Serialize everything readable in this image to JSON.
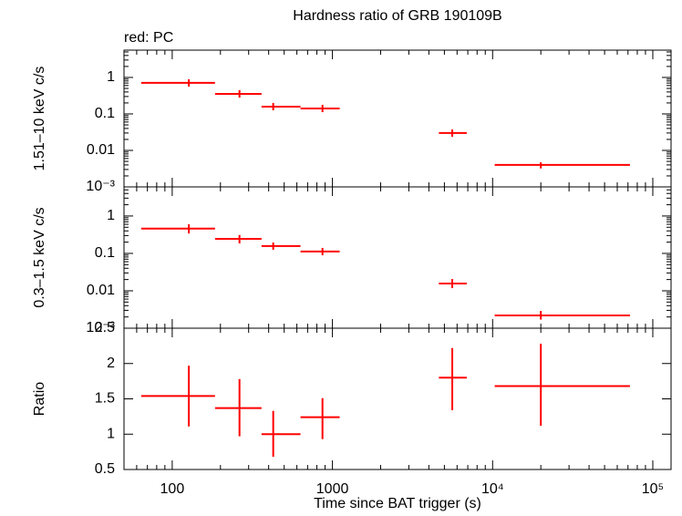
{
  "chart_data": [
    {
      "type": "errorbar",
      "title": "Hardness ratio of GRB 190109B",
      "subtitle": "red: PC",
      "ylabel": "1.51–10 keV c/s",
      "xscale": "log",
      "yscale": "log",
      "color": "#ff0000",
      "xlim": [
        50,
        130000
      ],
      "xticks": [
        100,
        1000,
        10000,
        100000
      ],
      "ylim": [
        0.001,
        5.6
      ],
      "yticks": [
        {
          "value": 0.001,
          "label": "10⁻³"
        },
        0.01,
        0.1,
        1
      ],
      "x": [
        127,
        263,
        427,
        867,
        5600,
        20000
      ],
      "x_lo": [
        64,
        185,
        361,
        632,
        4620,
        10300
      ],
      "x_hi": [
        185,
        361,
        632,
        1110,
        6900,
        72000
      ],
      "values": [
        0.71,
        0.355,
        0.158,
        0.141,
        0.03,
        0.004
      ],
      "y_lo": [
        0.56,
        0.28,
        0.126,
        0.112,
        0.0237,
        0.0032
      ],
      "y_hi": [
        0.89,
        0.45,
        0.2,
        0.178,
        0.0376,
        0.0047
      ]
    },
    {
      "type": "errorbar",
      "ylabel": "0.3–1.5 keV c/s",
      "xscale": "log",
      "yscale": "log",
      "color": "#ff0000",
      "xlim": [
        50,
        130000
      ],
      "xticks": [
        100,
        1000,
        10000,
        100000
      ],
      "ylim": [
        0.001,
        6.0
      ],
      "yticks": [
        {
          "value": 0.001,
          "label": "10⁻³"
        },
        0.01,
        0.1,
        1
      ],
      "x": [
        127,
        263,
        427,
        867,
        5600,
        20000
      ],
      "x_lo": [
        64,
        185,
        361,
        632,
        4620,
        10300
      ],
      "x_hi": [
        185,
        361,
        632,
        1110,
        6900,
        72000
      ],
      "values": [
        0.46,
        0.245,
        0.157,
        0.112,
        0.0157,
        0.0022
      ],
      "y_lo": [
        0.34,
        0.185,
        0.125,
        0.089,
        0.0118,
        0.0017
      ],
      "y_hi": [
        0.6,
        0.31,
        0.196,
        0.14,
        0.0207,
        0.0029
      ]
    },
    {
      "type": "errorbar",
      "ylabel": "Ratio",
      "xlabel": "Time since BAT trigger (s)",
      "xscale": "log",
      "yscale": "linear",
      "color": "#ff0000",
      "xlim": [
        50,
        130000
      ],
      "xticks": [
        100,
        1000,
        {
          "value": 10000,
          "label": "10⁴"
        },
        {
          "value": 100000,
          "label": "10⁵"
        }
      ],
      "ylim": [
        0.5,
        2.5
      ],
      "yticks": [
        0.5,
        1,
        1.5,
        2,
        2.5
      ],
      "x": [
        127,
        263,
        427,
        867,
        5600,
        20000
      ],
      "x_lo": [
        64,
        185,
        361,
        632,
        4620,
        10300
      ],
      "x_hi": [
        185,
        361,
        632,
        1110,
        6900,
        72000
      ],
      "values": [
        1.54,
        1.37,
        1.0,
        1.24,
        1.8,
        1.68
      ],
      "y_lo": [
        1.11,
        0.97,
        0.68,
        0.93,
        1.34,
        1.12
      ],
      "y_hi": [
        1.97,
        1.78,
        1.33,
        1.51,
        2.22,
        2.28
      ]
    }
  ]
}
